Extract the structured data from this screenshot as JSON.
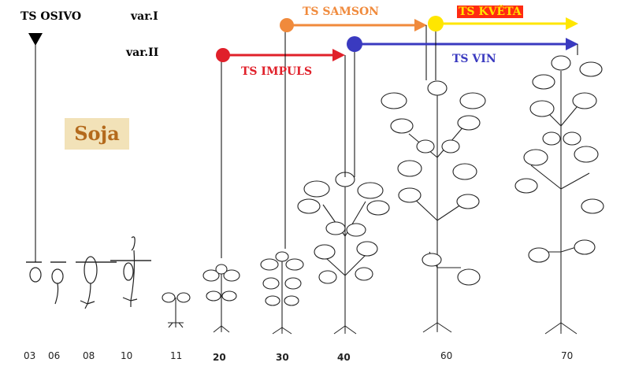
{
  "labels": {
    "osivo": "TS OSIVO",
    "var1": "var.I",
    "var2": "var.II",
    "samson": "TS SAMSON",
    "kveta": "TS KVĚTA",
    "impuls": "TS IMPULS",
    "vin": "TS VIN",
    "crop": "Soja"
  },
  "stages": [
    "03",
    "06",
    "08",
    "10",
    "11",
    "20",
    "30",
    "40",
    "60",
    "70"
  ],
  "colors": {
    "osivo": "#000000",
    "samson": "#f08a3c",
    "kveta": "#ffe600",
    "kveta_bg": "#ff2a12",
    "impuls": "#e0202a",
    "vin": "#3a3ac0",
    "crop_bg": "#f2e2b8",
    "crop_text": "#b46a1c"
  }
}
